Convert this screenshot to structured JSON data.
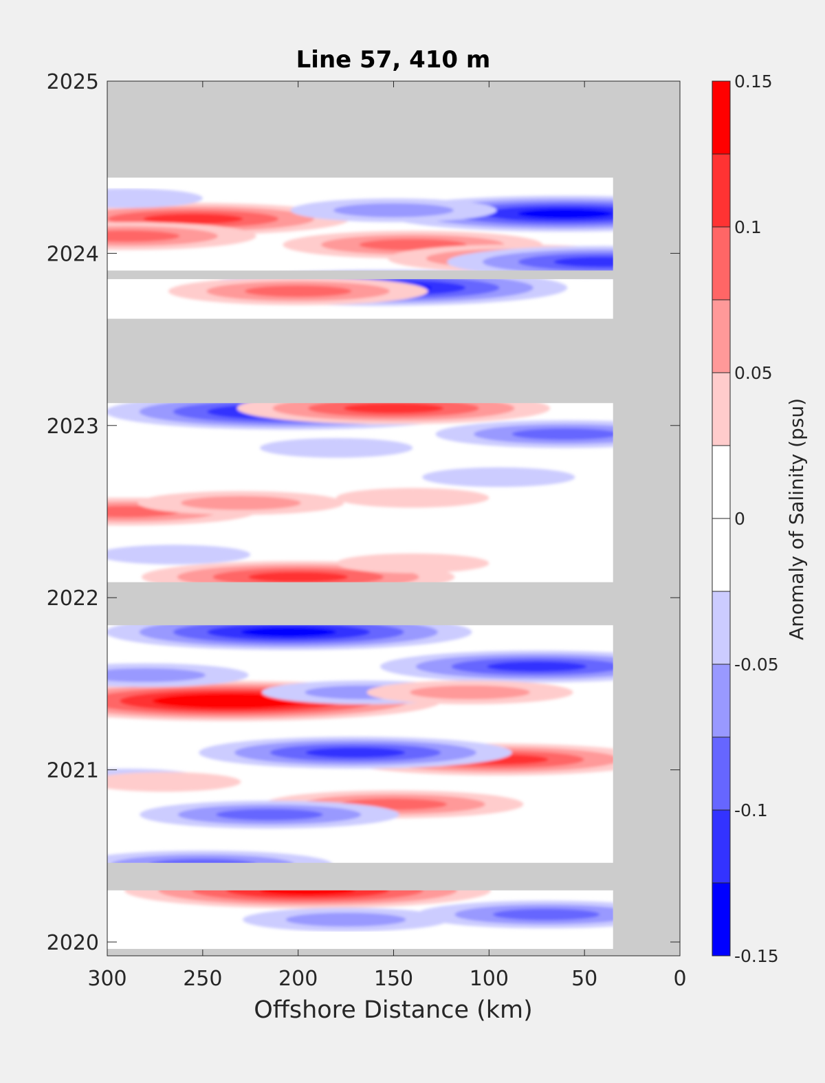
{
  "chart_data": {
    "type": "heatmap",
    "subtype": "filled-contour",
    "title": "Line 57, 410 m",
    "xlabel": "Offshore Distance (km)",
    "ylabel": "",
    "xlim": [
      300,
      0
    ],
    "x_reversed": true,
    "ylim": [
      2019.92,
      2025
    ],
    "xticks": [
      "300",
      "250",
      "200",
      "150",
      "100",
      "50",
      "0"
    ],
    "xtick_values": [
      300,
      250,
      200,
      150,
      100,
      50,
      0
    ],
    "yticks": [
      "2020",
      "2021",
      "2022",
      "2023",
      "2024",
      "2025"
    ],
    "ytick_values": [
      2020,
      2021,
      2022,
      2023,
      2024,
      2025
    ],
    "colorbar": {
      "label": "Anomaly of Salinity (psu)",
      "range": [
        -0.15,
        0.15
      ],
      "ticks": [
        "0.15",
        "0.1",
        "0.05",
        "0",
        "-0.05",
        "-0.1",
        "-0.15"
      ],
      "tick_values": [
        0.15,
        0.1,
        0.05,
        0,
        -0.05,
        -0.1,
        -0.15
      ],
      "levels": [
        {
          "min": 0.125,
          "max": 0.15,
          "color": "#ff0000"
        },
        {
          "min": 0.1,
          "max": 0.125,
          "color": "#ff3333"
        },
        {
          "min": 0.075,
          "max": 0.1,
          "color": "#ff6666"
        },
        {
          "min": 0.05,
          "max": 0.075,
          "color": "#ff9999"
        },
        {
          "min": 0.025,
          "max": 0.05,
          "color": "#ffcccc"
        },
        {
          "min": 0.0,
          "max": 0.025,
          "color": "#ffffff"
        },
        {
          "min": -0.025,
          "max": 0.0,
          "color": "#ffffff"
        },
        {
          "min": -0.05,
          "max": -0.025,
          "color": "#ccccff"
        },
        {
          "min": -0.075,
          "max": -0.05,
          "color": "#9999ff"
        },
        {
          "min": -0.1,
          "max": -0.075,
          "color": "#6666ff"
        },
        {
          "min": -0.125,
          "max": -0.1,
          "color": "#3333ff"
        },
        {
          "min": -0.15,
          "max": -0.125,
          "color": "#0000ff"
        }
      ]
    },
    "nodata_color": "#cccccc",
    "data_x_extent_km": [
      300,
      35
    ],
    "data_time_extent": [
      2019.96,
      2024.44
    ],
    "nodata_time_bands": [
      [
        2024.44,
        2025.0
      ],
      [
        2023.85,
        2023.9
      ],
      [
        2023.13,
        2023.62
      ],
      [
        2021.84,
        2022.09
      ],
      [
        2020.3,
        2020.46
      ]
    ],
    "anomaly_features": [
      {
        "x": 195,
        "t": 2020.3,
        "value": 0.14
      },
      {
        "x": 250,
        "t": 2020.45,
        "value": -0.08
      },
      {
        "x": 70,
        "t": 2020.16,
        "value": -0.09
      },
      {
        "x": 175,
        "t": 2020.13,
        "value": -0.05
      },
      {
        "x": 150,
        "t": 2020.8,
        "value": 0.09
      },
      {
        "x": 215,
        "t": 2020.74,
        "value": -0.08
      },
      {
        "x": 290,
        "t": 2020.95,
        "value": -0.04
      },
      {
        "x": 270,
        "t": 2020.93,
        "value": 0.04
      },
      {
        "x": 95,
        "t": 2021.06,
        "value": 0.12
      },
      {
        "x": 170,
        "t": 2021.1,
        "value": -0.11
      },
      {
        "x": 235,
        "t": 2021.4,
        "value": 0.15
      },
      {
        "x": 75,
        "t": 2021.6,
        "value": -0.11
      },
      {
        "x": 280,
        "t": 2021.55,
        "value": -0.06
      },
      {
        "x": 165,
        "t": 2021.45,
        "value": -0.06
      },
      {
        "x": 110,
        "t": 2021.45,
        "value": 0.06
      },
      {
        "x": 205,
        "t": 2021.8,
        "value": -0.13
      },
      {
        "x": 200,
        "t": 2022.12,
        "value": 0.12
      },
      {
        "x": 265,
        "t": 2022.25,
        "value": -0.04
      },
      {
        "x": 290,
        "t": 2022.5,
        "value": 0.09
      },
      {
        "x": 230,
        "t": 2022.55,
        "value": 0.06
      },
      {
        "x": 140,
        "t": 2022.58,
        "value": 0.04
      },
      {
        "x": 140,
        "t": 2022.2,
        "value": 0.04
      },
      {
        "x": 180,
        "t": 2022.87,
        "value": -0.04
      },
      {
        "x": 60,
        "t": 2022.95,
        "value": -0.09
      },
      {
        "x": 95,
        "t": 2022.7,
        "value": -0.04
      },
      {
        "x": 205,
        "t": 2023.08,
        "value": -0.14
      },
      {
        "x": 150,
        "t": 2023.1,
        "value": 0.1
      },
      {
        "x": 255,
        "t": 2024.2,
        "value": 0.1
      },
      {
        "x": 290,
        "t": 2024.1,
        "value": 0.09
      },
      {
        "x": 140,
        "t": 2024.05,
        "value": 0.09
      },
      {
        "x": 85,
        "t": 2023.97,
        "value": 0.08
      },
      {
        "x": 60,
        "t": 2024.23,
        "value": -0.14
      },
      {
        "x": 150,
        "t": 2024.25,
        "value": -0.07
      },
      {
        "x": 155,
        "t": 2023.8,
        "value": -0.14
      },
      {
        "x": 40,
        "t": 2023.95,
        "value": -0.11
      },
      {
        "x": 290,
        "t": 2024.32,
        "value": -0.04
      },
      {
        "x": 200,
        "t": 2023.78,
        "value": 0.08
      }
    ]
  }
}
